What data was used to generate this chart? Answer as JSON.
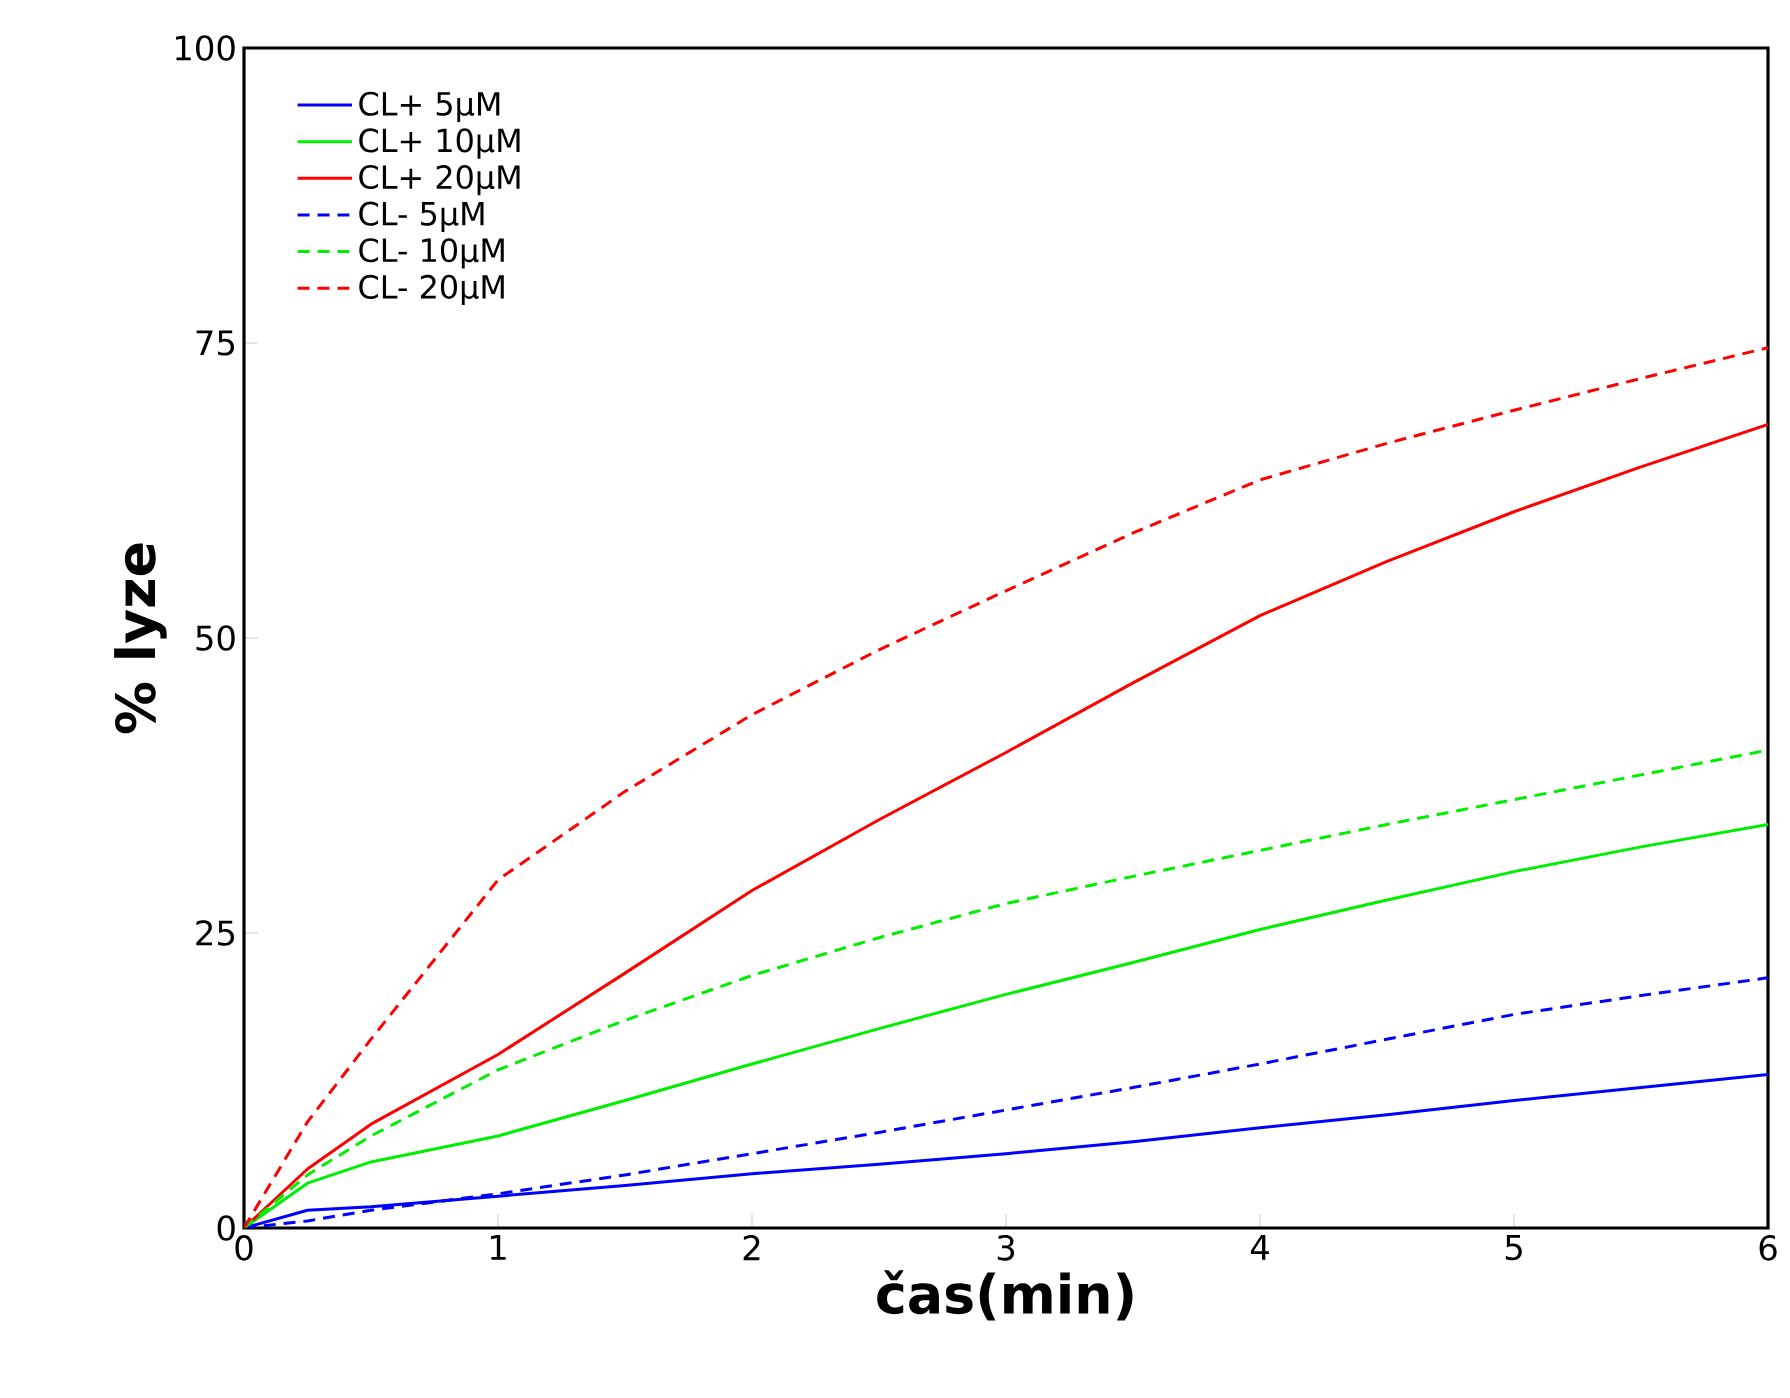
{
  "chart_data": {
    "type": "line",
    "xlabel": "čas(min)",
    "ylabel": "% lyze",
    "legend": "top left",
    "xlim": [
      0,
      6
    ],
    "ylim": [
      0,
      100
    ],
    "xticks": [
      0,
      1,
      2,
      3,
      4,
      5,
      6
    ],
    "yticks": [
      0,
      25,
      50,
      75,
      100
    ],
    "x": [
      0,
      0.25,
      0.5,
      1,
      1.5,
      2,
      2.5,
      3,
      3.5,
      4,
      4.5,
      5,
      5.5,
      6
    ],
    "series": [
      {
        "name": "CL+ 5μM",
        "color": "#0000ff",
        "line_style": "solid",
        "values": [
          0,
          1.5,
          1.8,
          2.7,
          3.6,
          4.6,
          5.4,
          6.3,
          7.3,
          8.5,
          9.6,
          10.8,
          11.9,
          13
        ]
      },
      {
        "name": "CL+ 10μM",
        "color": "#00ee00",
        "line_style": "solid",
        "values": [
          0,
          3.8,
          5.6,
          7.8,
          10.8,
          13.9,
          16.9,
          19.8,
          22.5,
          25.3,
          27.8,
          30.2,
          32.3,
          34.2
        ]
      },
      {
        "name": "CL+ 20μM",
        "color": "#ff0000",
        "line_style": "solid",
        "values": [
          0,
          5,
          8.8,
          14.7,
          21.6,
          28.6,
          34.6,
          40.3,
          46.2,
          51.9,
          56.5,
          60.7,
          64.5,
          68.1
        ]
      },
      {
        "name": "CL- 5μM",
        "color": "#0000ff",
        "line_style": "dashed",
        "values": [
          0,
          0.6,
          1.5,
          2.9,
          4.5,
          6.3,
          8.1,
          10,
          11.9,
          13.9,
          16,
          18.1,
          19.7,
          21.2
        ]
      },
      {
        "name": "CL- 10μM",
        "color": "#00ee00",
        "line_style": "dashed",
        "values": [
          0,
          4.5,
          7.8,
          13.4,
          17.6,
          21.4,
          24.6,
          27.5,
          29.8,
          32,
          34.2,
          36.3,
          38.4,
          40.5
        ]
      },
      {
        "name": "CL- 20μM",
        "color": "#ff0000",
        "line_style": "dashed",
        "values": [
          0,
          9,
          16,
          29.5,
          37,
          43.5,
          49,
          54,
          58.9,
          63.4,
          66.5,
          69.3,
          72,
          74.6
        ]
      }
    ]
  }
}
